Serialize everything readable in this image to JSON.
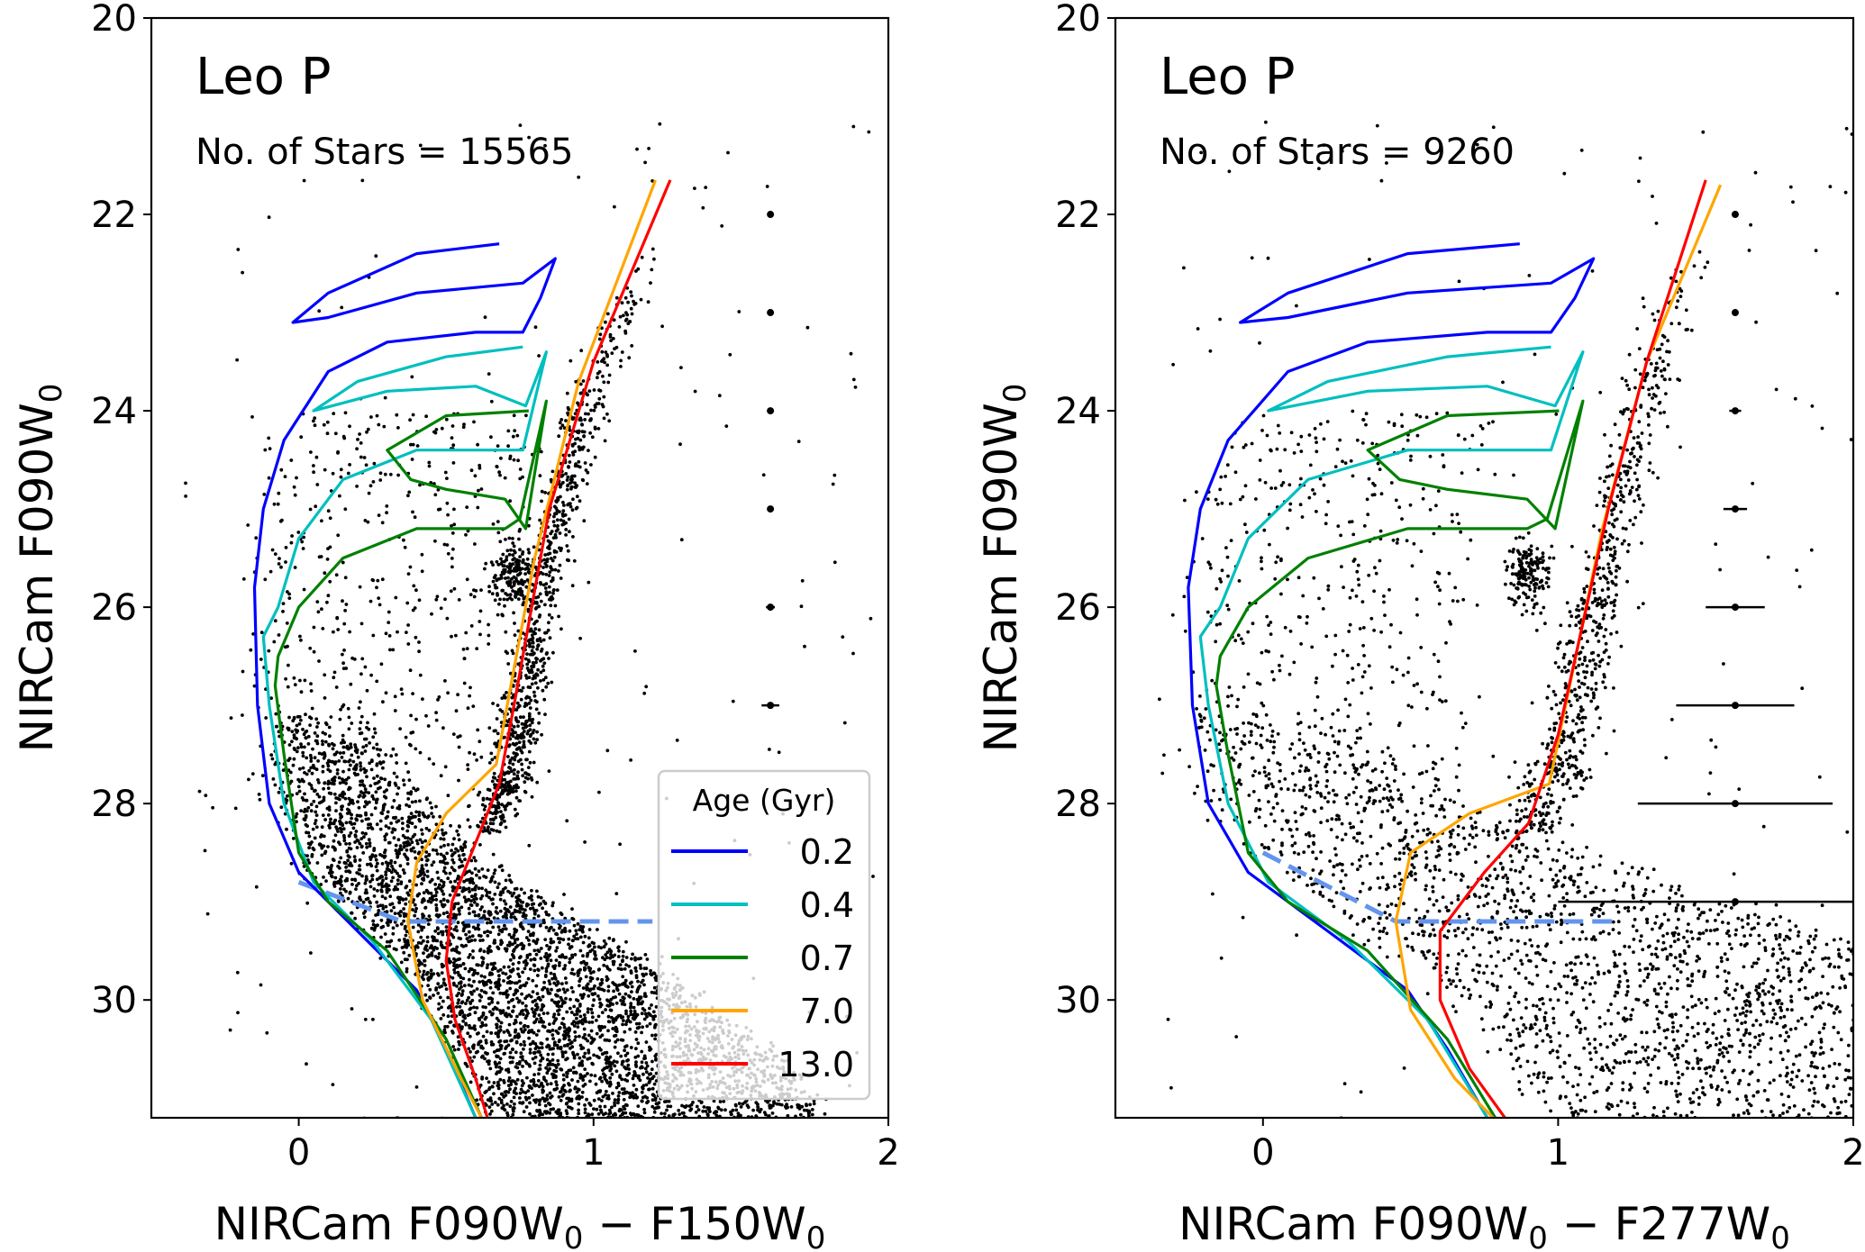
{
  "chart_data": [
    {
      "type": "scatter",
      "title": "Leo P",
      "annotation": "No. of Stars = 15565",
      "xlabel": [
        {
          "t": "NIRCam F090W",
          "sub": false
        },
        {
          "t": "0",
          "sub": true
        },
        {
          "t": " − F150W",
          "sub": false
        },
        {
          "t": "0",
          "sub": true
        }
      ],
      "ylabel": [
        {
          "t": "NIRCam F090W",
          "sub": false
        },
        {
          "t": "0",
          "sub": true
        }
      ],
      "xlim": [
        -0.5,
        2
      ],
      "ylim": [
        31.2,
        20
      ],
      "y_inverted": true,
      "xticks": [
        "0",
        "1",
        "2"
      ],
      "xtick_values": [
        0,
        1,
        2
      ],
      "yticks": [
        "20",
        "22",
        "24",
        "26",
        "28",
        "30"
      ],
      "ytick_values": [
        20,
        22,
        24,
        26,
        28,
        30
      ],
      "legend": {
        "title": "Age (Gyr)",
        "placement": "lower-right"
      },
      "error_bars": {
        "x": 1.6,
        "mag": [
          22,
          23,
          24,
          25,
          26,
          27
        ],
        "xerr": [
          0.005,
          0.005,
          0.008,
          0.01,
          0.015,
          0.03
        ]
      },
      "completeness_line": {
        "color": "#6495ed",
        "style": "dashed",
        "points": [
          [
            0,
            28.8
          ],
          [
            0.35,
            29.2
          ],
          [
            1.2,
            29.2
          ]
        ]
      },
      "isochrones": [
        {
          "name": "0.2",
          "color": "#0000ff",
          "points": [
            [
              0.68,
              22.3
            ],
            [
              0.4,
              22.4
            ],
            [
              0.1,
              22.8
            ],
            [
              -0.02,
              23.1
            ],
            [
              0.1,
              23.05
            ],
            [
              0.4,
              22.8
            ],
            [
              0.76,
              22.7
            ],
            [
              0.87,
              22.45
            ],
            [
              0.82,
              22.85
            ],
            [
              0.76,
              23.2
            ],
            [
              0.6,
              23.2
            ],
            [
              0.3,
              23.3
            ],
            [
              0.1,
              23.6
            ],
            [
              -0.05,
              24.3
            ],
            [
              -0.12,
              25
            ],
            [
              -0.15,
              25.8
            ],
            [
              -0.14,
              27
            ],
            [
              -0.1,
              28
            ],
            [
              0,
              28.7
            ],
            [
              0.2,
              29.3
            ],
            [
              0.4,
              29.9
            ],
            [
              0.5,
              30.5
            ],
            [
              0.6,
              31.2
            ]
          ]
        },
        {
          "name": "0.4",
          "color": "#00bfbf",
          "points": [
            [
              0.76,
              23.35
            ],
            [
              0.5,
              23.45
            ],
            [
              0.2,
              23.7
            ],
            [
              0.05,
              24
            ],
            [
              0.3,
              23.8
            ],
            [
              0.6,
              23.75
            ],
            [
              0.77,
              23.95
            ],
            [
              0.84,
              23.4
            ],
            [
              0.76,
              24.4
            ],
            [
              0.7,
              24.4
            ],
            [
              0.4,
              24.4
            ],
            [
              0.15,
              24.7
            ],
            [
              0,
              25.3
            ],
            [
              -0.07,
              26
            ],
            [
              -0.12,
              26.3
            ],
            [
              -0.1,
              27
            ],
            [
              -0.05,
              28
            ],
            [
              0.05,
              28.8
            ],
            [
              0.25,
              29.4
            ],
            [
              0.45,
              30.2
            ],
            [
              0.6,
              31.2
            ]
          ]
        },
        {
          "name": "0.7",
          "color": "#008000",
          "points": [
            [
              0.78,
              24
            ],
            [
              0.5,
              24.05
            ],
            [
              0.3,
              24.4
            ],
            [
              0.38,
              24.7
            ],
            [
              0.5,
              24.8
            ],
            [
              0.7,
              24.9
            ],
            [
              0.77,
              25.2
            ],
            [
              0.84,
              23.9
            ],
            [
              0.75,
              25.1
            ],
            [
              0.7,
              25.2
            ],
            [
              0.4,
              25.2
            ],
            [
              0.15,
              25.5
            ],
            [
              0,
              26
            ],
            [
              -0.07,
              26.5
            ],
            [
              -0.08,
              26.8
            ],
            [
              -0.05,
              27.5
            ],
            [
              0,
              28.5
            ],
            [
              0.1,
              29
            ],
            [
              0.3,
              29.5
            ],
            [
              0.5,
              30.4
            ],
            [
              0.62,
              31.2
            ]
          ]
        },
        {
          "name": "7.0",
          "color": "#ffa500",
          "points": [
            [
              1.21,
              21.65
            ],
            [
              0.95,
              23.7
            ],
            [
              0.8,
              25.5
            ],
            [
              0.67,
              27.6
            ],
            [
              0.5,
              28.1
            ],
            [
              0.4,
              28.6
            ],
            [
              0.37,
              29.2
            ],
            [
              0.42,
              30
            ],
            [
              0.55,
              30.8
            ],
            [
              0.62,
              31.2
            ]
          ]
        },
        {
          "name": "13.0",
          "color": "#ff0000",
          "points": [
            [
              1.26,
              21.65
            ],
            [
              1.0,
              23.5
            ],
            [
              0.85,
              25
            ],
            [
              0.73,
              27
            ],
            [
              0.68,
              27.8
            ],
            [
              0.6,
              28.4
            ],
            [
              0.52,
              29
            ],
            [
              0.5,
              29.6
            ],
            [
              0.53,
              30.2
            ],
            [
              0.6,
              30.8
            ],
            [
              0.64,
              31.2
            ]
          ]
        }
      ]
    },
    {
      "type": "scatter",
      "title": "Leo P",
      "annotation": "No. of Stars = 9260",
      "xlabel": [
        {
          "t": "NIRCam F090W",
          "sub": false
        },
        {
          "t": "0",
          "sub": true
        },
        {
          "t": " − F277W",
          "sub": false
        },
        {
          "t": "0",
          "sub": true
        }
      ],
      "ylabel": [
        {
          "t": "NIRCam F090W",
          "sub": false
        },
        {
          "t": "0",
          "sub": true
        }
      ],
      "xlim": [
        -0.5,
        2
      ],
      "ylim": [
        31.2,
        20
      ],
      "y_inverted": true,
      "xticks": [
        "0",
        "1",
        "2"
      ],
      "xtick_values": [
        0,
        1,
        2
      ],
      "yticks": [
        "20",
        "22",
        "24",
        "26",
        "28",
        "30"
      ],
      "ytick_values": [
        20,
        22,
        24,
        26,
        28,
        30
      ],
      "error_bars": {
        "x": 1.6,
        "mag": [
          22,
          23,
          24,
          25,
          26,
          27,
          28,
          29
        ],
        "xerr": [
          0.005,
          0.01,
          0.02,
          0.04,
          0.1,
          0.2,
          0.33,
          0.6
        ]
      },
      "completeness_line": {
        "color": "#6495ed",
        "style": "dashed",
        "points": [
          [
            0,
            28.5
          ],
          [
            0.45,
            29.2
          ],
          [
            1.2,
            29.2
          ]
        ]
      },
      "isochrones": [
        {
          "name": "0.2",
          "color": "#0000ff",
          "points": [
            [
              0.87,
              22.3
            ],
            [
              0.49,
              22.4
            ],
            [
              0.085,
              22.8
            ],
            [
              -0.077,
              23.1
            ],
            [
              0.085,
              23.05
            ],
            [
              0.49,
              22.8
            ],
            [
              0.976,
              22.7
            ],
            [
              1.12,
              22.45
            ],
            [
              1.057,
              22.85
            ],
            [
              0.976,
              23.2
            ],
            [
              0.76,
              23.2
            ],
            [
              0.355,
              23.3
            ],
            [
              0.085,
              23.6
            ],
            [
              -0.118,
              24.3
            ],
            [
              -0.212,
              25
            ],
            [
              -0.253,
              25.8
            ],
            [
              -0.239,
              27
            ],
            [
              -0.185,
              28
            ],
            [
              -0.05,
              28.7
            ],
            [
              0.22,
              29.3
            ],
            [
              0.49,
              29.9
            ],
            [
              0.625,
              30.5
            ],
            [
              0.76,
              31.2
            ]
          ]
        },
        {
          "name": "0.4",
          "color": "#00bfbf",
          "points": [
            [
              0.976,
              23.35
            ],
            [
              0.625,
              23.45
            ],
            [
              0.22,
              23.7
            ],
            [
              0.018,
              24
            ],
            [
              0.355,
              23.8
            ],
            [
              0.76,
              23.75
            ],
            [
              0.99,
              23.95
            ],
            [
              1.084,
              23.4
            ],
            [
              0.976,
              24.4
            ],
            [
              0.895,
              24.4
            ],
            [
              0.49,
              24.4
            ],
            [
              0.153,
              24.7
            ],
            [
              -0.05,
              25.3
            ],
            [
              -0.145,
              26
            ],
            [
              -0.212,
              26.3
            ],
            [
              -0.185,
              27
            ],
            [
              -0.118,
              28
            ],
            [
              0.018,
              28.8
            ],
            [
              0.288,
              29.4
            ],
            [
              0.558,
              30.2
            ],
            [
              0.76,
              31.2
            ]
          ]
        },
        {
          "name": "0.7",
          "color": "#008000",
          "points": [
            [
              1.003,
              24
            ],
            [
              0.625,
              24.05
            ],
            [
              0.355,
              24.4
            ],
            [
              0.463,
              24.7
            ],
            [
              0.625,
              24.8
            ],
            [
              0.895,
              24.9
            ],
            [
              0.99,
              25.2
            ],
            [
              1.084,
              23.9
            ],
            [
              0.963,
              25.1
            ],
            [
              0.895,
              25.2
            ],
            [
              0.49,
              25.2
            ],
            [
              0.153,
              25.5
            ],
            [
              -0.05,
              26
            ],
            [
              -0.145,
              26.5
            ],
            [
              -0.158,
              26.8
            ],
            [
              -0.118,
              27.5
            ],
            [
              -0.05,
              28.5
            ],
            [
              0.085,
              29
            ],
            [
              0.355,
              29.5
            ],
            [
              0.625,
              30.4
            ],
            [
              0.787,
              31.2
            ]
          ]
        },
        {
          "name": "7.0",
          "color": "#ffa500",
          "points": [
            [
              1.55,
              21.7
            ],
            [
              1.3,
              23.5
            ],
            [
              1.15,
              25.2
            ],
            [
              0.97,
              27.8
            ],
            [
              0.7,
              28.1
            ],
            [
              0.5,
              28.5
            ],
            [
              0.45,
              29.2
            ],
            [
              0.5,
              30.1
            ],
            [
              0.65,
              30.8
            ],
            [
              0.78,
              31.2
            ]
          ]
        },
        {
          "name": "13.0",
          "color": "#ff0000",
          "points": [
            [
              1.5,
              21.65
            ],
            [
              1.3,
              23.5
            ],
            [
              1.17,
              25
            ],
            [
              1.0,
              27.3
            ],
            [
              0.9,
              28.2
            ],
            [
              0.75,
              28.7
            ],
            [
              0.6,
              29.3
            ],
            [
              0.6,
              30
            ],
            [
              0.7,
              30.7
            ],
            [
              0.82,
              31.2
            ]
          ]
        }
      ]
    }
  ]
}
